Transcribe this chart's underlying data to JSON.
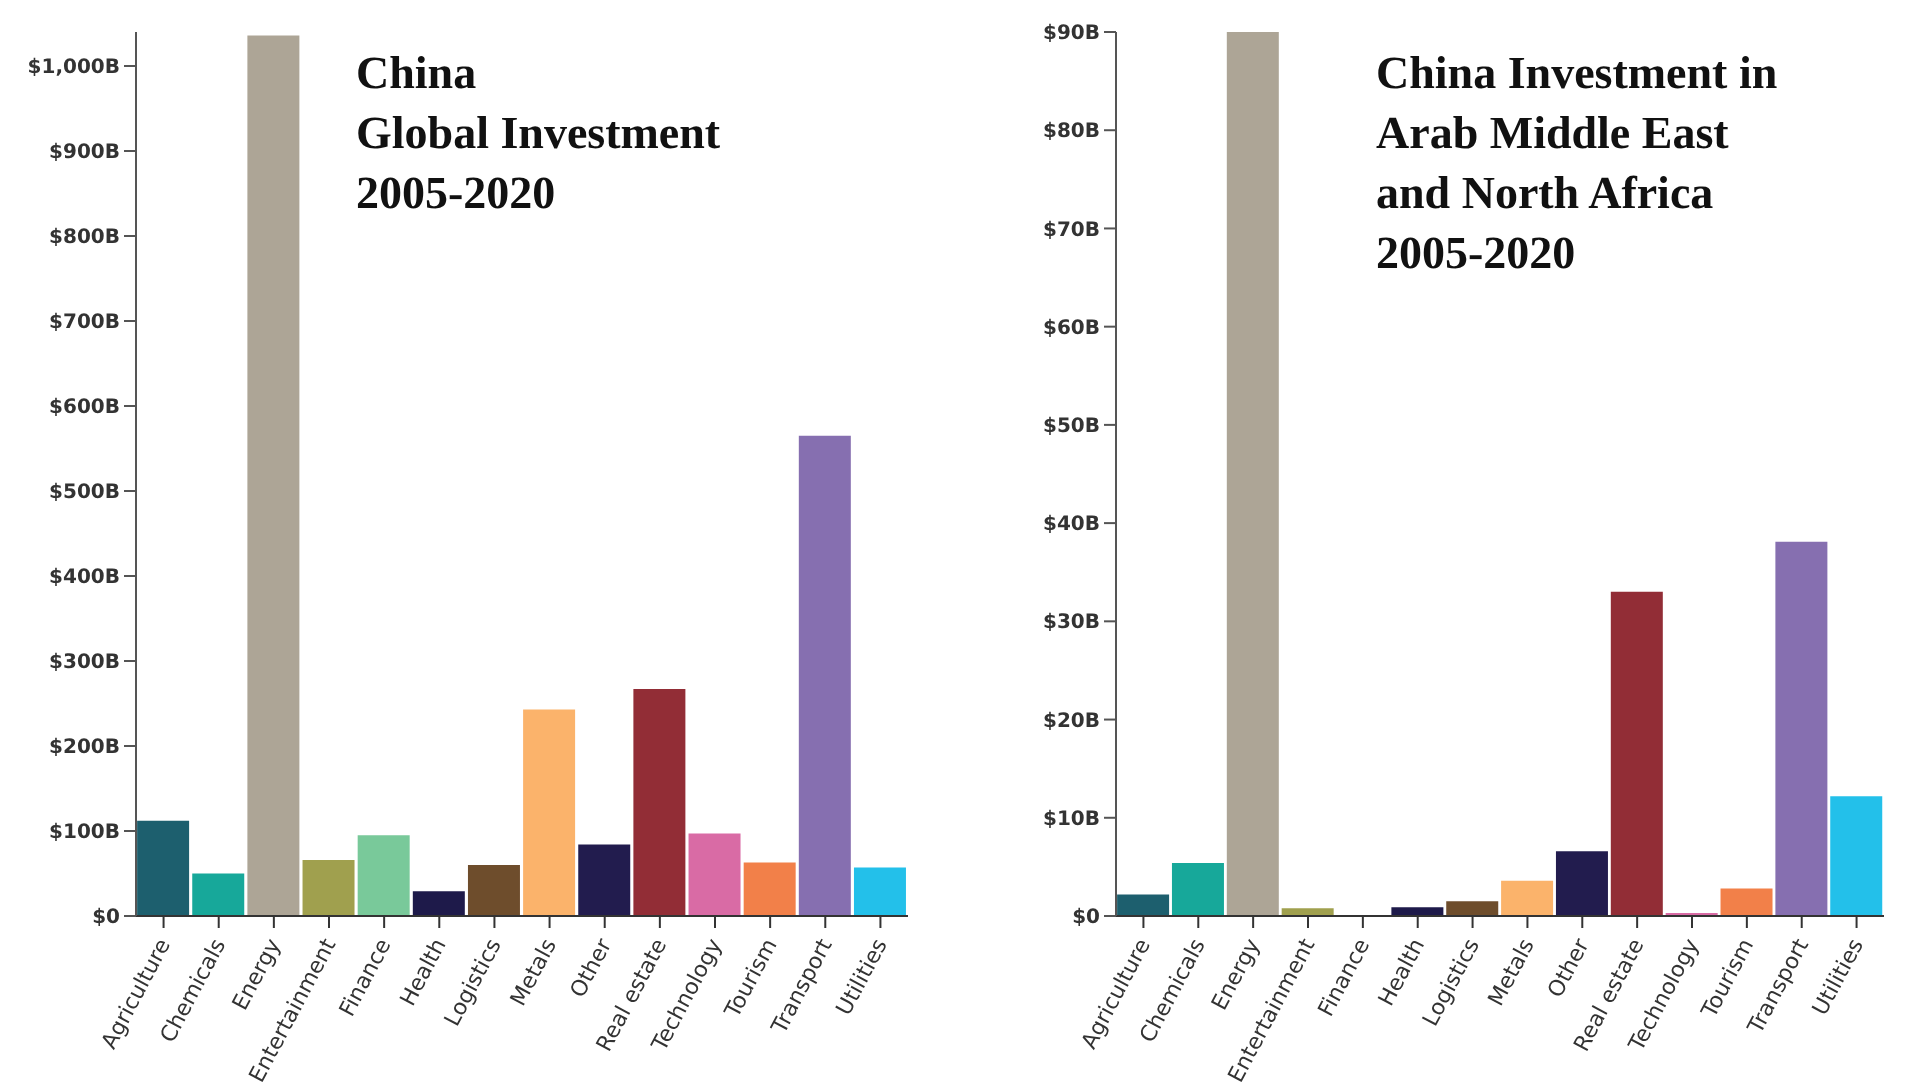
{
  "chart_data": [
    {
      "type": "bar",
      "title": "China\nGlobal Investment\n2005-2020",
      "categories": [
        "Agriculture",
        "Chemicals",
        "Energy",
        "Entertainment",
        "Finance",
        "Health",
        "Logistics",
        "Metals",
        "Other",
        "Real estate",
        "Technology",
        "Tourism",
        "Transport",
        "Utilities"
      ],
      "values": [
        112,
        50,
        1036,
        66,
        95,
        29,
        60,
        243,
        84,
        267,
        97,
        63,
        565,
        57
      ],
      "colors": [
        "#1d5f6e",
        "#17a89a",
        "#ada596",
        "#a0a04e",
        "#79c99a",
        "#1e1a4a",
        "#6e4d2c",
        "#fbb36b",
        "#221c4e",
        "#922d36",
        "#d96ba5",
        "#f28049",
        "#866fb0",
        "#23c0ea"
      ],
      "ylim": [
        0,
        1040
      ],
      "yticks": [
        {
          "value": 0,
          "label": "$0"
        },
        {
          "value": 100,
          "label": "$100B"
        },
        {
          "value": 200,
          "label": "$200B"
        },
        {
          "value": 300,
          "label": "$300B"
        },
        {
          "value": 400,
          "label": "$400B"
        },
        {
          "value": 500,
          "label": "$500B"
        },
        {
          "value": 600,
          "label": "$600B"
        },
        {
          "value": 700,
          "label": "$700B"
        },
        {
          "value": 800,
          "label": "$800B"
        },
        {
          "value": 900,
          "label": "$900B"
        },
        {
          "value": 1000,
          "label": "$1,000B"
        }
      ]
    },
    {
      "type": "bar",
      "title": "China Investment in\nArab Middle East\nand North Africa\n2005-2020",
      "categories": [
        "Agriculture",
        "Chemicals",
        "Energy",
        "Entertainment",
        "Finance",
        "Health",
        "Logistics",
        "Metals",
        "Other",
        "Real estate",
        "Technology",
        "Tourism",
        "Transport",
        "Utilities"
      ],
      "values": [
        2.2,
        5.4,
        90,
        0.8,
        0,
        0.9,
        1.5,
        3.6,
        6.6,
        33,
        0.3,
        2.8,
        38.1,
        12.2
      ],
      "colors": [
        "#1d5f6e",
        "#17a89a",
        "#ada596",
        "#a0a04e",
        "#79c99a",
        "#1e1a4a",
        "#6e4d2c",
        "#fbb36b",
        "#221c4e",
        "#922d36",
        "#d96ba5",
        "#f28049",
        "#866fb0",
        "#23c0ea"
      ],
      "ylim": [
        0,
        90
      ],
      "yticks": [
        {
          "value": 0,
          "label": "$0"
        },
        {
          "value": 10,
          "label": "$10B"
        },
        {
          "value": 20,
          "label": "$20B"
        },
        {
          "value": 30,
          "label": "$30B"
        },
        {
          "value": 40,
          "label": "$40B"
        },
        {
          "value": 50,
          "label": "$50B"
        },
        {
          "value": 60,
          "label": "$60B"
        },
        {
          "value": 70,
          "label": "$70B"
        },
        {
          "value": 80,
          "label": "$80B"
        },
        {
          "value": 90,
          "label": "$90B"
        }
      ]
    }
  ]
}
